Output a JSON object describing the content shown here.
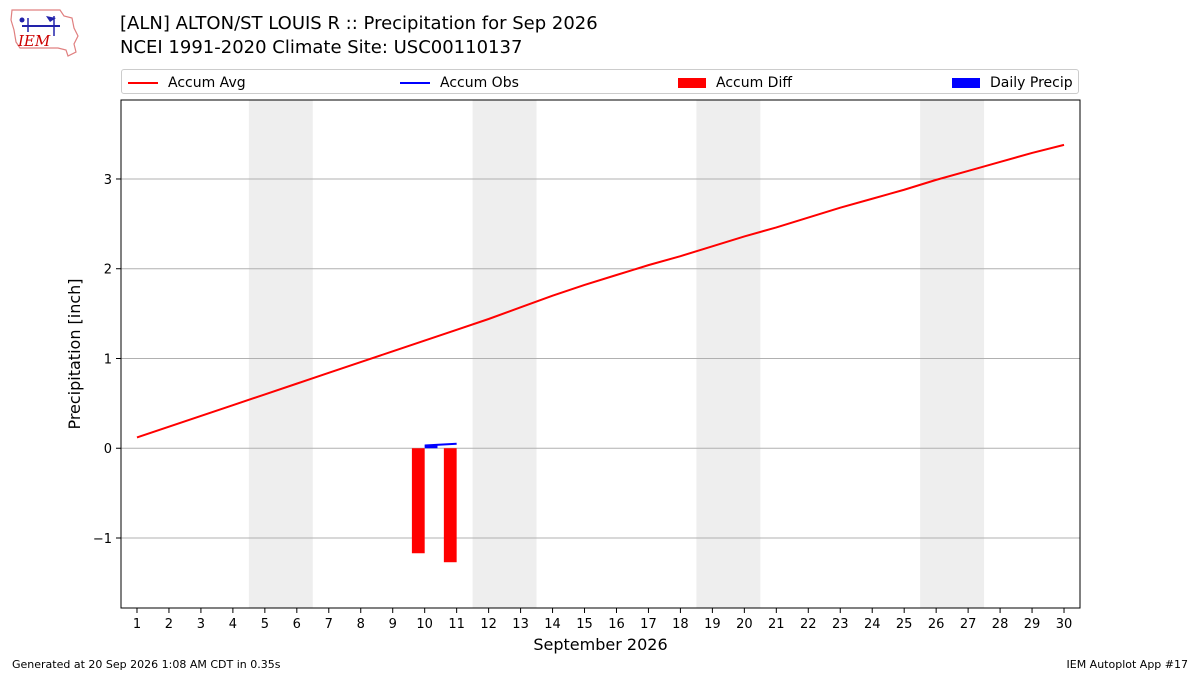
{
  "logo": {
    "text": "IEM"
  },
  "header": {
    "title_line1": "[ALN] ALTON/ST LOUIS R :: Precipitation for Sep 2026",
    "title_line2": "NCEI 1991-2020 Climate Site: USC00110137"
  },
  "colors": {
    "avg": "#ff0000",
    "obs": "#0000ff",
    "diff": "#ff0000",
    "daily": "#0000ff",
    "weekend_shade": "#eeeeee",
    "grid": "#b0b0b0"
  },
  "chart_data": {
    "type": "bar",
    "title": "[ALN] ALTON/ST LOUIS R :: Precipitation for Sep 2026",
    "subtitle": "NCEI 1991-2020 Climate Site: USC00110137",
    "xlabel": "September 2026",
    "ylabel": "Precipitation [inch]",
    "xlim": [
      0.5,
      30.5
    ],
    "ylim": [
      -1.78,
      3.88
    ],
    "yticks": [
      -1,
      0,
      1,
      2,
      3
    ],
    "ytick_labels": [
      "−1",
      "0",
      "1",
      "2",
      "3"
    ],
    "x": [
      1,
      2,
      3,
      4,
      5,
      6,
      7,
      8,
      9,
      10,
      11,
      12,
      13,
      14,
      15,
      16,
      17,
      18,
      19,
      20,
      21,
      22,
      23,
      24,
      25,
      26,
      27,
      28,
      29,
      30
    ],
    "xtick_labels": [
      "1",
      "2",
      "3",
      "4",
      "5",
      "6",
      "7",
      "8",
      "9",
      "10",
      "11",
      "12",
      "13",
      "14",
      "15",
      "16",
      "17",
      "18",
      "19",
      "20",
      "21",
      "22",
      "23",
      "24",
      "25",
      "26",
      "27",
      "28",
      "29",
      "30"
    ],
    "weekend_bands": [
      [
        4.5,
        6.5
      ],
      [
        11.5,
        13.5
      ],
      [
        18.5,
        20.5
      ],
      [
        25.5,
        27.5
      ]
    ],
    "grid": true,
    "legend_position": "top",
    "legend": [
      "Accum Avg",
      "Accum Obs",
      "Accum Diff",
      "Daily Precip"
    ],
    "series": [
      {
        "name": "Accum Avg",
        "kind": "line",
        "x": [
          1,
          2,
          3,
          4,
          5,
          6,
          7,
          8,
          9,
          10,
          11,
          12,
          13,
          14,
          15,
          16,
          17,
          18,
          19,
          20,
          21,
          22,
          23,
          24,
          25,
          26,
          27,
          28,
          29,
          30
        ],
        "values": [
          0.12,
          0.24,
          0.36,
          0.48,
          0.6,
          0.72,
          0.84,
          0.96,
          1.08,
          1.2,
          1.32,
          1.44,
          1.57,
          1.7,
          1.82,
          1.93,
          2.04,
          2.14,
          2.25,
          2.36,
          2.46,
          2.57,
          2.68,
          2.78,
          2.88,
          2.99,
          3.09,
          3.19,
          3.29,
          3.38
        ]
      },
      {
        "name": "Accum Obs",
        "kind": "line",
        "x": [
          10,
          11
        ],
        "values": [
          0.03,
          0.05
        ]
      },
      {
        "name": "Accum Diff",
        "kind": "bar",
        "x": [
          9.8,
          10.8
        ],
        "values": [
          -1.17,
          -1.27
        ]
      },
      {
        "name": "Daily Precip",
        "kind": "bar",
        "x": [
          10.2
        ],
        "values": [
          0.03
        ]
      }
    ]
  },
  "footer": {
    "generated": "Generated at 20 Sep 2026 1:08 AM CDT in 0.35s",
    "app": "IEM Autoplot App #17"
  }
}
